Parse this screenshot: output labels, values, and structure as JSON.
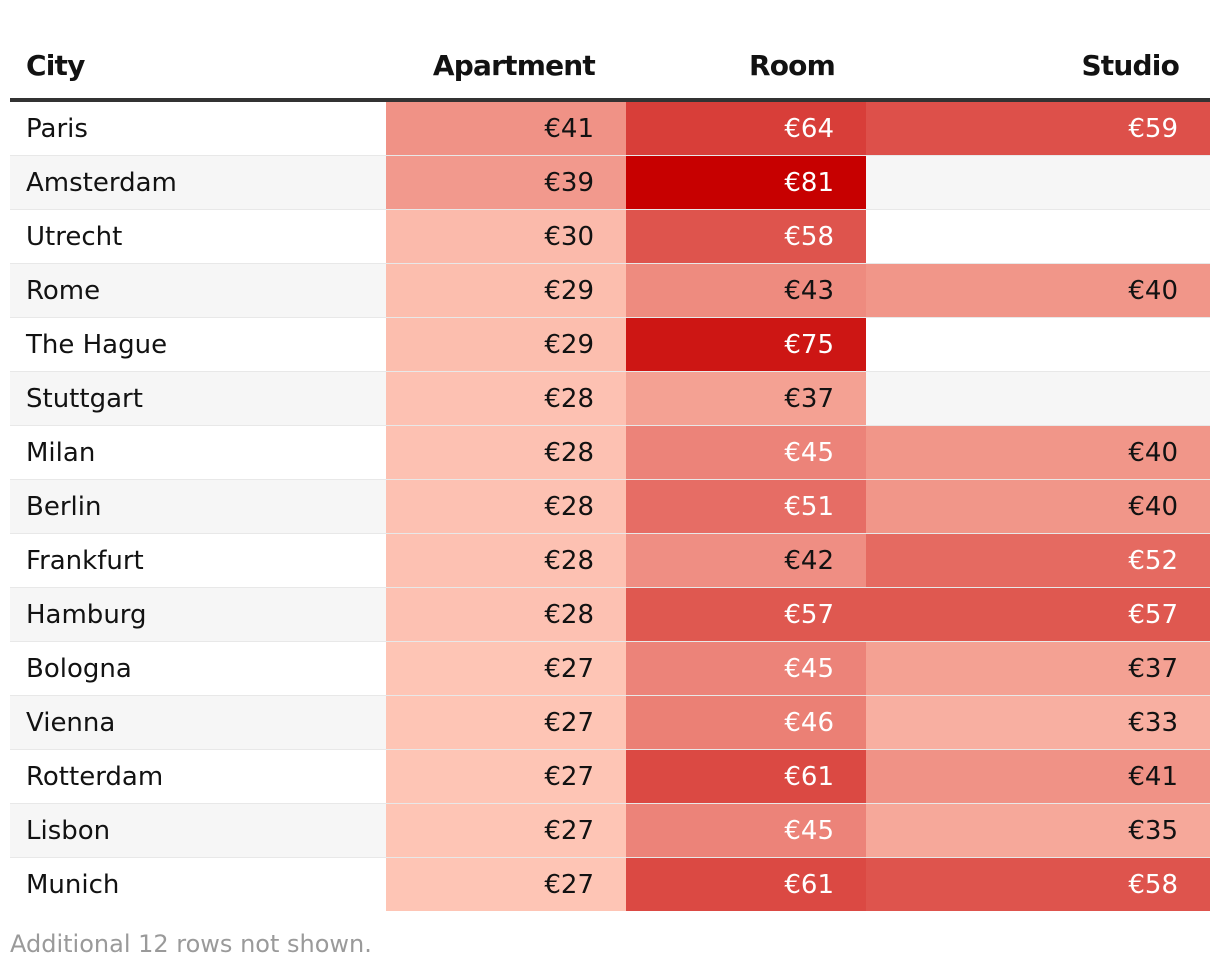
{
  "chart_data": {
    "type": "table",
    "columns": [
      "City",
      "Apartment",
      "Room",
      "Studio"
    ],
    "rows": [
      {
        "city": "Paris",
        "apartment": "€41",
        "room": "€64",
        "studio": "€59"
      },
      {
        "city": "Amsterdam",
        "apartment": "€39",
        "room": "€81",
        "studio": ""
      },
      {
        "city": "Utrecht",
        "apartment": "€30",
        "room": "€58",
        "studio": ""
      },
      {
        "city": "Rome",
        "apartment": "€29",
        "room": "€43",
        "studio": "€40"
      },
      {
        "city": "The Hague",
        "apartment": "€29",
        "room": "€75",
        "studio": ""
      },
      {
        "city": "Stuttgart",
        "apartment": "€28",
        "room": "€37",
        "studio": ""
      },
      {
        "city": "Milan",
        "apartment": "€28",
        "room": "€45",
        "studio": "€40"
      },
      {
        "city": "Berlin",
        "apartment": "€28",
        "room": "€51",
        "studio": "€40"
      },
      {
        "city": "Frankfurt",
        "apartment": "€28",
        "room": "€42",
        "studio": "€52"
      },
      {
        "city": "Hamburg",
        "apartment": "€28",
        "room": "€57",
        "studio": "€57"
      },
      {
        "city": "Bologna",
        "apartment": "€27",
        "room": "€45",
        "studio": "€37"
      },
      {
        "city": "Vienna",
        "apartment": "€27",
        "room": "€46",
        "studio": "€33"
      },
      {
        "city": "Rotterdam",
        "apartment": "€27",
        "room": "€61",
        "studio": "€41"
      },
      {
        "city": "Lisbon",
        "apartment": "€27",
        "room": "€45",
        "studio": "€35"
      },
      {
        "city": "Munich",
        "apartment": "€27",
        "room": "€61",
        "studio": "€58"
      }
    ],
    "color_scale": {
      "low": "#fec5b5",
      "high": "#c70000"
    }
  },
  "footnote": "Additional 12 rows not shown."
}
